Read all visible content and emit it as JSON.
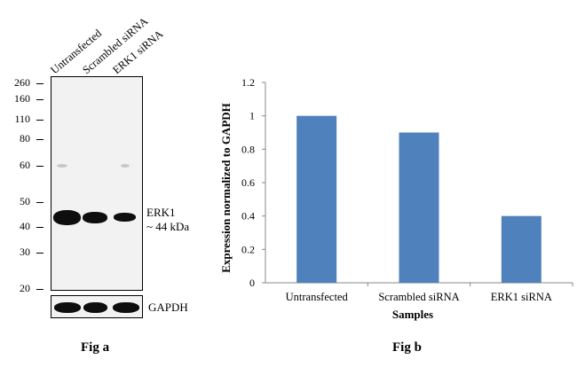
{
  "fig_a": {
    "lane_labels": [
      "Untransfected",
      "Scrambled siRNA",
      "ERK1 siRNA"
    ],
    "mw_markers": [
      "260",
      "160",
      "110",
      "80",
      "60",
      "50",
      "40",
      "30",
      "20"
    ],
    "band_label": "ERK1",
    "band_size": "~ 44 kDa",
    "loading_control": "GAPDH",
    "caption": "Fig a"
  },
  "fig_b": {
    "caption": "Fig b"
  },
  "chart_data": {
    "type": "bar",
    "categories": [
      "Untransfected",
      "Scrambled siRNA",
      "ERK1 siRNA"
    ],
    "values": [
      1.0,
      0.9,
      0.4
    ],
    "title": "",
    "xlabel": "Samples",
    "ylabel": "Expression normalized to GAPDH",
    "ylim": [
      0,
      1.2
    ],
    "yticks": [
      "0",
      "0.2",
      "0.4",
      "0.6",
      "0.8",
      "1",
      "1.2"
    ],
    "bar_color": "#4f81bd",
    "grid": false,
    "legend": "none"
  }
}
